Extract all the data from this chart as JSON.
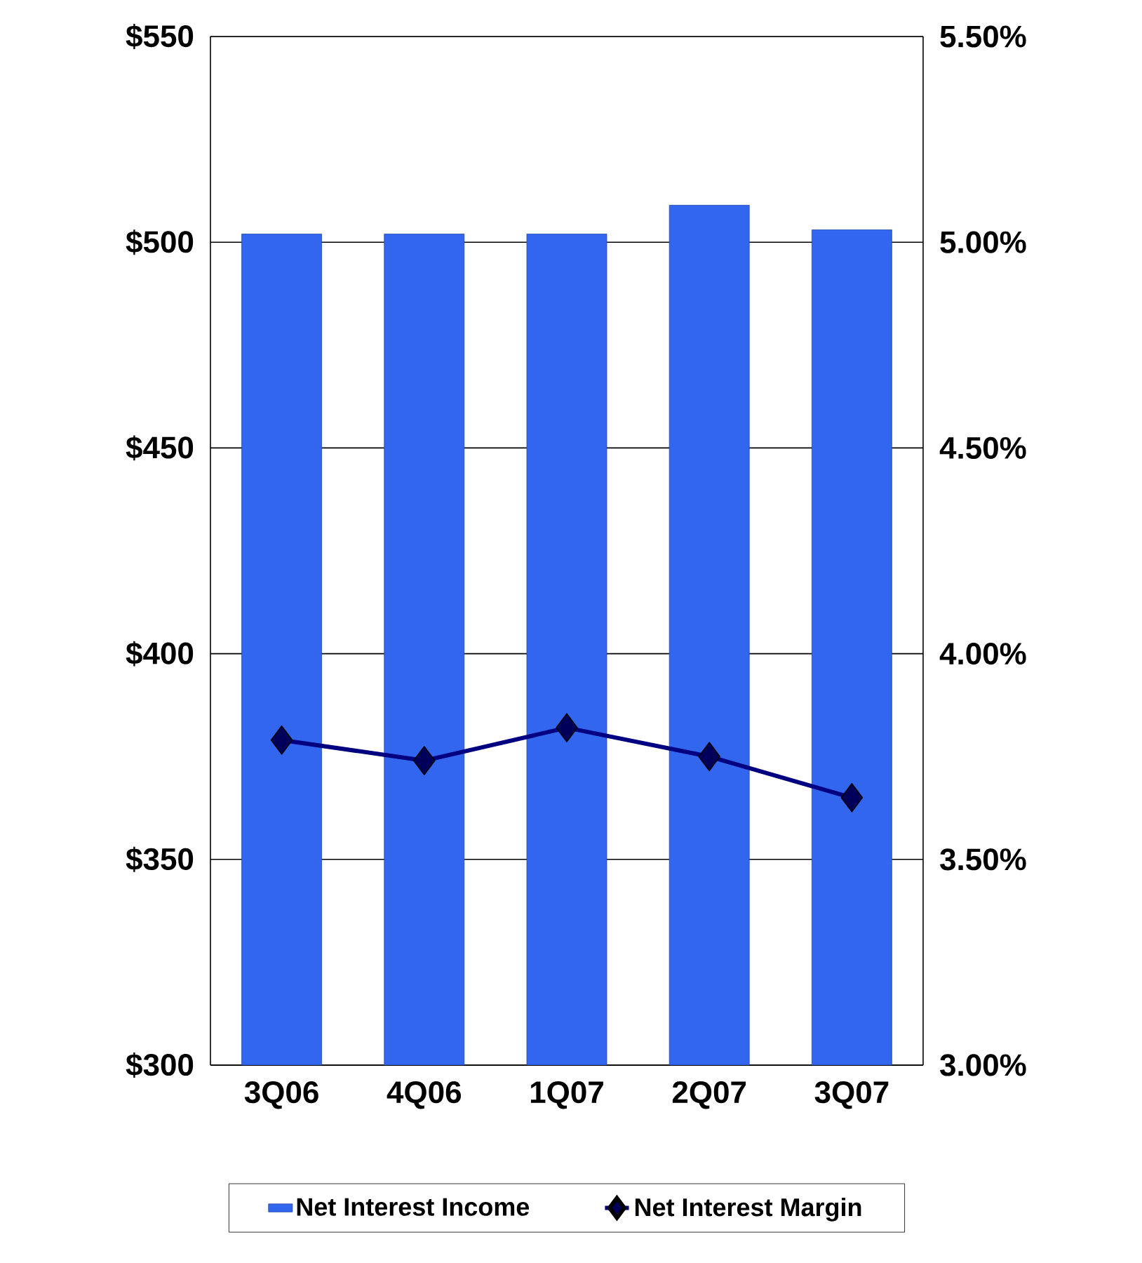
{
  "chart_data": {
    "type": "bar",
    "categories": [
      "3Q06",
      "4Q06",
      "1Q07",
      "2Q07",
      "3Q07"
    ],
    "series": [
      {
        "name": "Net Interest Income",
        "color": "#3366ee",
        "values": [
          502,
          502,
          502,
          509,
          503
        ]
      },
      {
        "name": "Net Interest Margin",
        "type": "line",
        "axis": "y2",
        "color": "#000080",
        "values": [
          3.79,
          3.74,
          3.82,
          3.75,
          3.65
        ]
      }
    ],
    "ylim": [
      300,
      550
    ],
    "yticks": [
      {
        "value": 300,
        "label": "$300"
      },
      {
        "value": 350,
        "label": "$350"
      },
      {
        "value": 400,
        "label": "$400"
      },
      {
        "value": 450,
        "label": "$450"
      },
      {
        "value": 500,
        "label": "$500"
      },
      {
        "value": 550,
        "label": "$550"
      }
    ],
    "y2lim": [
      3.0,
      5.5
    ],
    "y2ticks": [
      {
        "value": 3.0,
        "label": "3.00%"
      },
      {
        "value": 3.5,
        "label": "3.50%"
      },
      {
        "value": 4.0,
        "label": "4.00%"
      },
      {
        "value": 4.5,
        "label": "4.50%"
      },
      {
        "value": 5.0,
        "label": "5.00%"
      },
      {
        "value": 5.5,
        "label": "5.50%"
      }
    ],
    "grid": "y",
    "legend": "bottom",
    "marker": "diamond"
  }
}
